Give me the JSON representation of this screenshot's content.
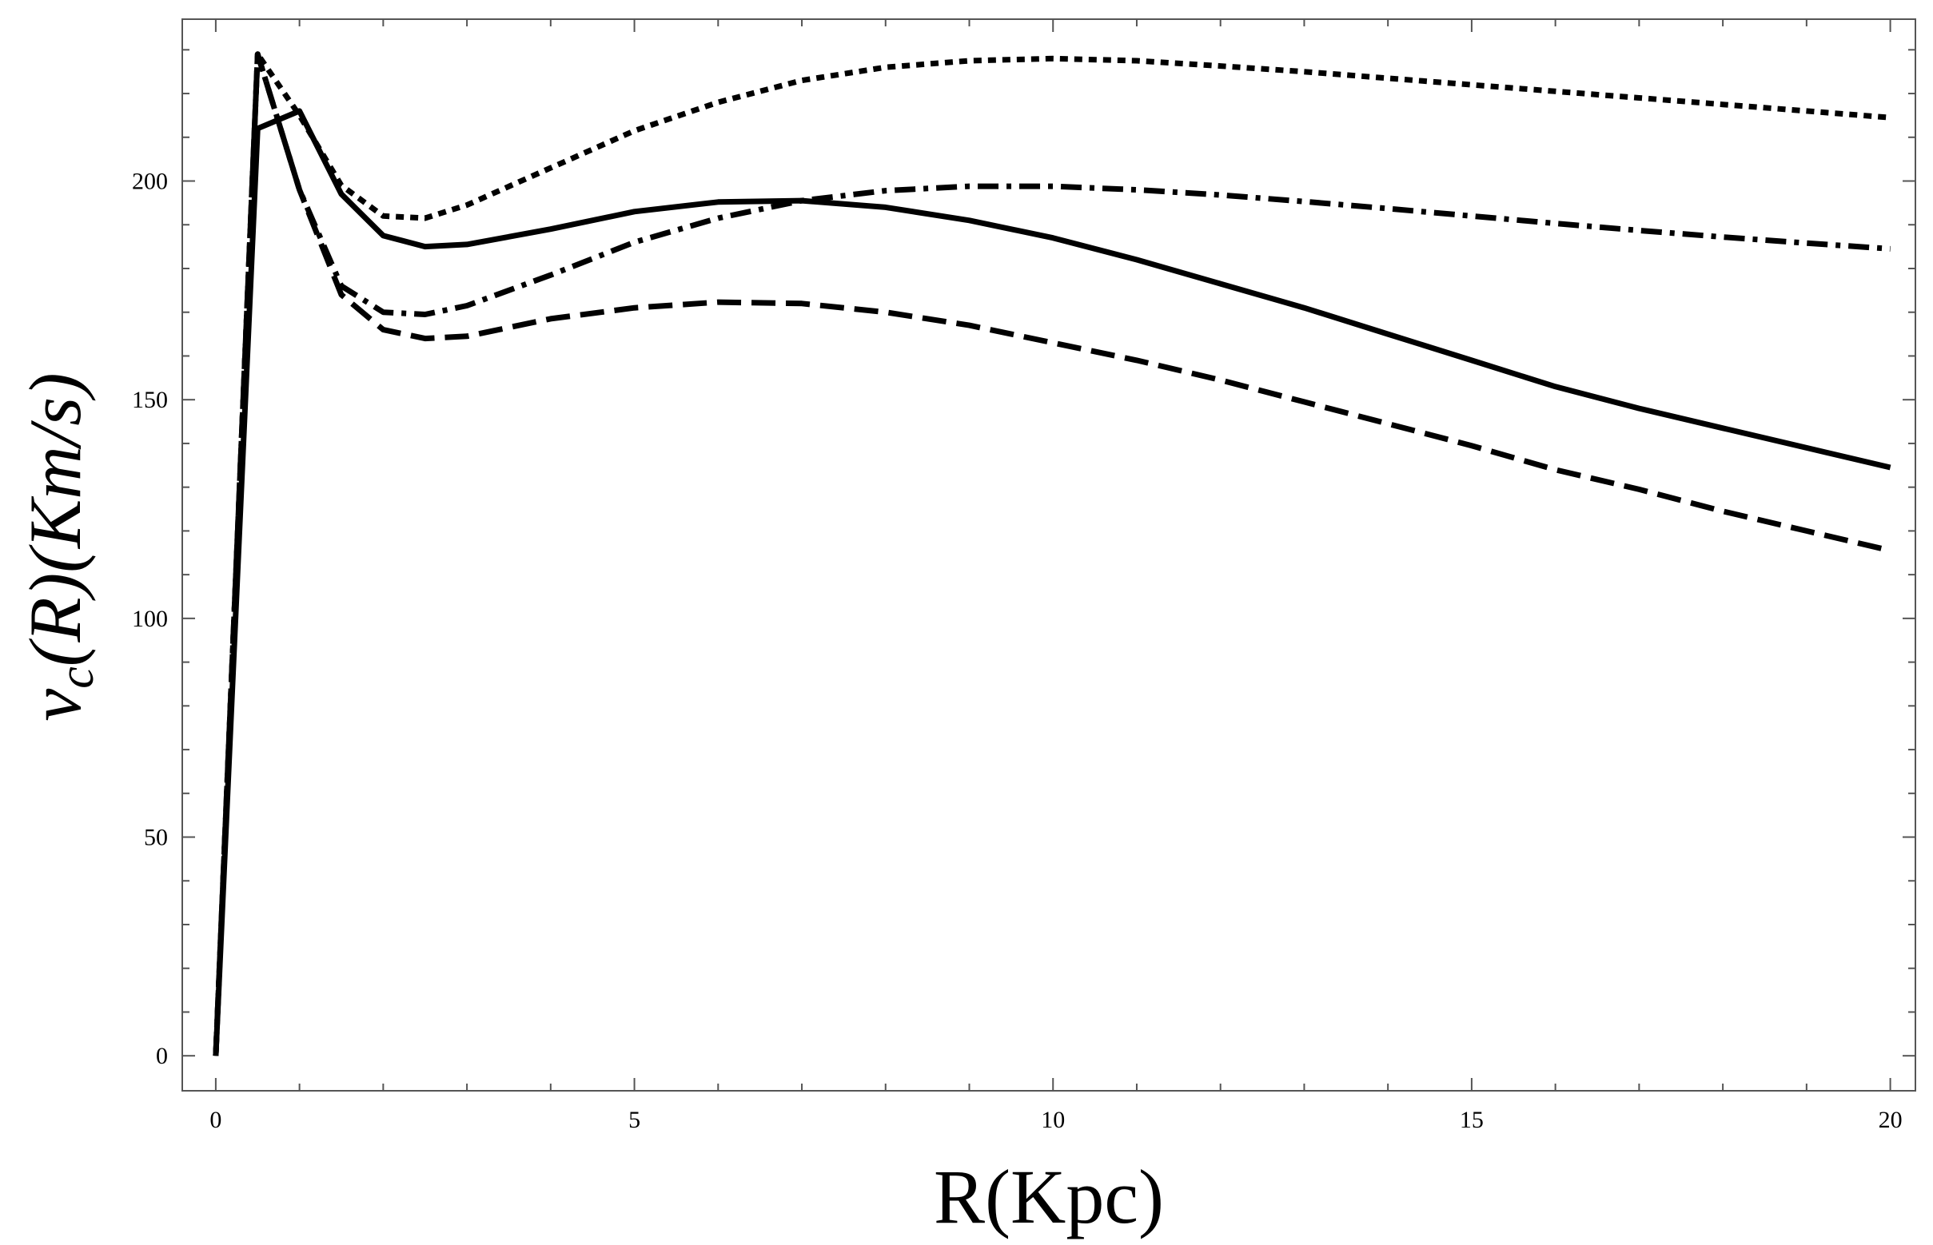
{
  "chart_data": {
    "type": "line",
    "title": "",
    "xlabel": "R(Kpc)",
    "ylabel": {
      "base": "v",
      "sub": "c",
      "rest": "(R)(Km/s)"
    },
    "xlim": [
      -0.4,
      20.3
    ],
    "ylim": [
      -8,
      237
    ],
    "x_ticks": [
      0,
      5,
      10,
      15,
      20
    ],
    "y_ticks": [
      0,
      50,
      100,
      150,
      200
    ],
    "grid": false,
    "legend": "none",
    "series": [
      {
        "style": "solid",
        "x": [
          0,
          0.5,
          1.0,
          1.5,
          2.0,
          2.5,
          3.0,
          4.0,
          5.0,
          6.0,
          7.0,
          8.0,
          9.0,
          10.0,
          11.0,
          12.0,
          13.0,
          14.0,
          15.0,
          16.0,
          17.0,
          18.0,
          19.0,
          20.0
        ],
        "y": [
          0,
          212,
          216,
          197,
          187.5,
          185,
          185.5,
          189,
          193,
          195.2,
          195.5,
          194,
          191,
          187,
          182,
          176.5,
          171,
          165,
          159,
          153,
          148,
          143.5,
          139,
          134.5
        ]
      },
      {
        "style": "dashed",
        "x": [
          0,
          0.5,
          1.0,
          1.5,
          2.0,
          2.5,
          3.0,
          4.0,
          5.0,
          6.0,
          7.0,
          8.0,
          9.0,
          10.0,
          11.0,
          12.0,
          13.0,
          14.0,
          15.0,
          16.0,
          17.0,
          18.0,
          19.0,
          20.0
        ],
        "y": [
          0,
          229,
          198,
          174,
          166,
          164,
          164.5,
          168.5,
          171,
          172.3,
          172,
          170,
          167,
          163,
          159,
          154.5,
          149.5,
          144.5,
          139.5,
          134,
          129.5,
          124.5,
          120,
          115.5
        ]
      },
      {
        "style": "dash-dot",
        "x": [
          0,
          0.5,
          1.0,
          1.5,
          2.0,
          2.5,
          3.0,
          4.0,
          5.0,
          6.0,
          7.0,
          8.0,
          9.0,
          10.0,
          11.0,
          12.0,
          13.0,
          14.0,
          15.0,
          16.0,
          17.0,
          18.0,
          19.0,
          20.0
        ],
        "y": [
          0,
          229,
          198,
          176,
          170,
          169.5,
          171.5,
          178.5,
          186,
          191.5,
          195.5,
          197.8,
          198.8,
          198.8,
          198,
          196.8,
          195.3,
          193.7,
          192,
          190.3,
          188.7,
          187.2,
          185.8,
          184.5
        ]
      },
      {
        "style": "dotted",
        "x": [
          0,
          0.5,
          1.0,
          1.5,
          2.0,
          2.5,
          3.0,
          4.0,
          5.0,
          6.0,
          7.0,
          8.0,
          9.0,
          10.0,
          11.0,
          12.0,
          13.0,
          14.0,
          15.0,
          16.0,
          17.0,
          18.0,
          19.0,
          20.0
        ],
        "y": [
          0,
          229,
          215,
          199,
          192,
          191.5,
          194.5,
          203,
          211.5,
          218,
          223,
          226,
          227.5,
          228,
          227.5,
          226.3,
          225,
          223.5,
          222,
          220.5,
          219,
          217.5,
          216,
          214.5
        ]
      }
    ]
  }
}
